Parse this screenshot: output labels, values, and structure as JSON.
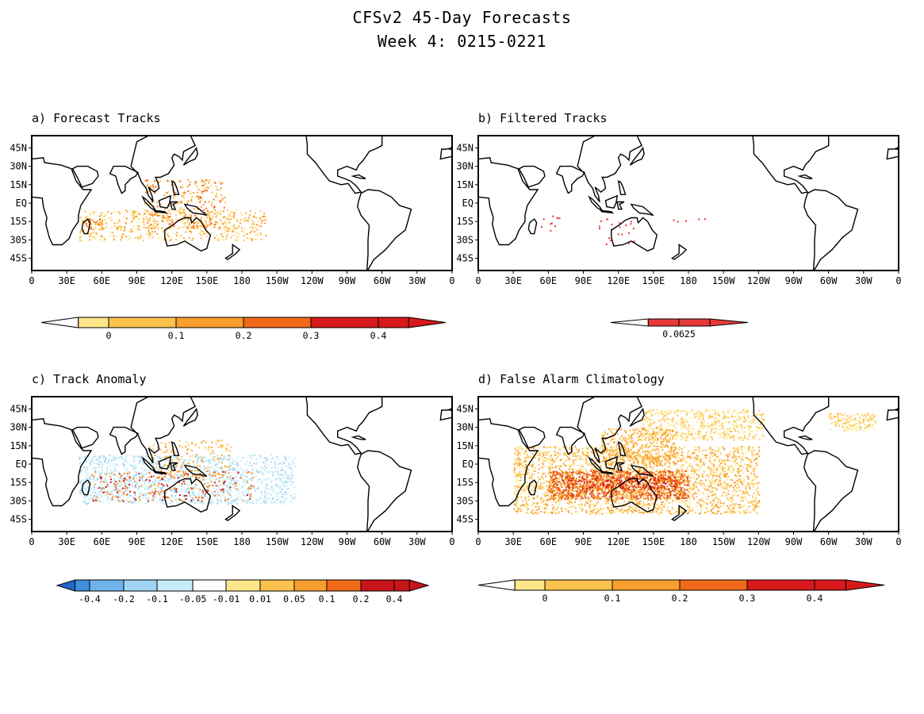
{
  "title_line1": "CFSv2 45-Day Forecasts",
  "title_line2": "Week 4: 0215-0221",
  "lat_labels": [
    "45N",
    "30N",
    "15N",
    "EQ",
    "15S",
    "30S",
    "45S"
  ],
  "lon_labels": [
    "0",
    "30E",
    "60E",
    "90E",
    "120E",
    "150E",
    "180",
    "150W",
    "120W",
    "90W",
    "60W",
    "30W",
    "0"
  ],
  "panels": [
    {
      "label": "a) Forecast Tracks",
      "colorbar": {
        "ticks": [
          "0",
          "0.1",
          "0.2",
          "0.3",
          "0.4"
        ],
        "colors": [
          "#ffffff",
          "#fde68a",
          "#fcc24e",
          "#f99f2f",
          "#f06a1a",
          "#d7191c"
        ]
      }
    },
    {
      "label": "b) Filtered Tracks",
      "colorbar": {
        "ticks": [
          "0.0625"
        ],
        "colors": [
          "#ffffff",
          "#e8393a"
        ]
      }
    },
    {
      "label": "c) Track Anomaly",
      "colorbar": {
        "ticks": [
          "-0.4",
          "-0.2",
          "-0.1",
          "-0.05",
          "-0.01",
          "0.01",
          "0.05",
          "0.1",
          "0.2",
          "0.4"
        ],
        "colors": [
          "#2166c8",
          "#3f8fdc",
          "#6fb3ea",
          "#9fd4f3",
          "#c6ecf7",
          "#ffffff",
          "#fde68a",
          "#fcc24e",
          "#f99f2f",
          "#f06a1a",
          "#c8151b"
        ]
      }
    },
    {
      "label": "d) False Alarm Climatology",
      "colorbar": {
        "ticks": [
          "0",
          "0.1",
          "0.2",
          "0.3",
          "0.4"
        ],
        "colors": [
          "#ffffff",
          "#fde68a",
          "#fcc24e",
          "#f99f2f",
          "#f06a1a",
          "#d7191c"
        ]
      }
    }
  ]
}
